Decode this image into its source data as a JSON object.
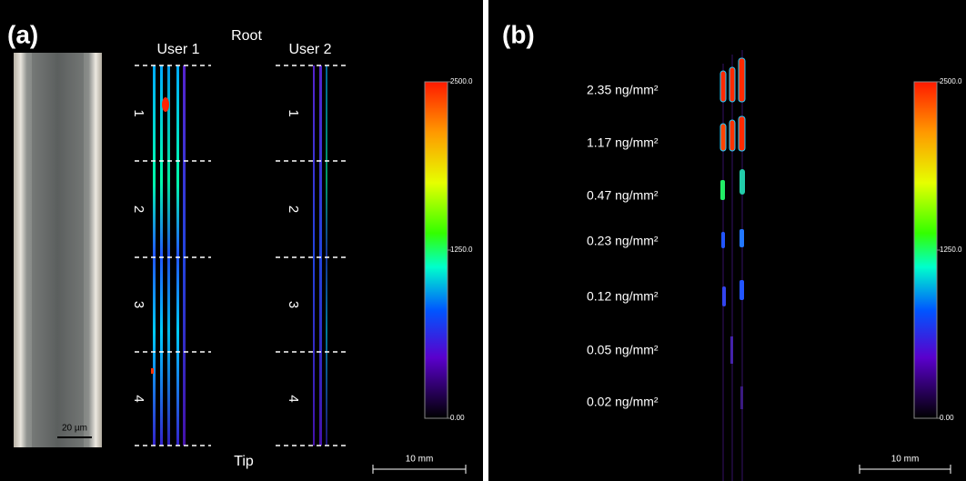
{
  "panel_a": {
    "label": "(a)",
    "root": "Root",
    "tip": "Tip",
    "user1": "User 1",
    "user2": "User 2",
    "segments": [
      "1",
      "2",
      "3",
      "4"
    ],
    "hair_scale": "20 µm",
    "scale": "10 mm",
    "colorbar": [
      "2500.0",
      "1250.0",
      "0.00"
    ]
  },
  "panel_b": {
    "label": "(b)",
    "concentrations": [
      "2.35 ng/mm²",
      "1.17 ng/mm²",
      "0.47 ng/mm²",
      "0.23 ng/mm²",
      "0.12 ng/mm²",
      "0.05 ng/mm²",
      "0.02 ng/mm²"
    ],
    "scale": "10 mm",
    "colorbar": [
      "2500.0",
      "1250.0",
      "0.00"
    ]
  }
}
